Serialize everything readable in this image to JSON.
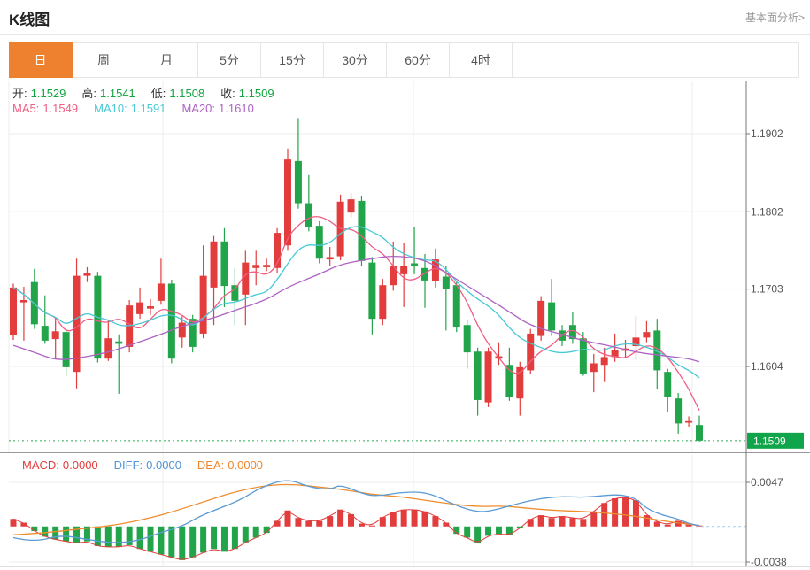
{
  "header": {
    "title": "K线图",
    "link": "基本面分析>"
  },
  "tabs": {
    "items": [
      "日",
      "周",
      "月",
      "5分",
      "15分",
      "30分",
      "60分",
      "4时"
    ],
    "active": "日"
  },
  "overlay": {
    "ohlc": [
      {
        "key": "open",
        "label": "开:",
        "value": "1.1529"
      },
      {
        "key": "high",
        "label": "高:",
        "value": "1.1541"
      },
      {
        "key": "low",
        "label": "低:",
        "value": "1.1508"
      },
      {
        "key": "close",
        "label": "收:",
        "value": "1.1509"
      }
    ],
    "ohlc_label_color": "#333333",
    "ohlc_value_color": "#12a43e",
    "ma": [
      {
        "key": "ma5",
        "label": "MA5:",
        "value": "1.1549",
        "color": "#ef5d83"
      },
      {
        "key": "ma10",
        "label": "MA10:",
        "value": "1.1591",
        "color": "#49c9d6"
      },
      {
        "key": "ma20",
        "label": "MA20:",
        "value": "1.1610",
        "color": "#ad62c2"
      }
    ],
    "macd": [
      {
        "key": "macd",
        "label": "MACD:",
        "value": "0.0000",
        "color": "#e23c3c"
      },
      {
        "key": "diff",
        "label": "DIFF:",
        "value": "0.0000",
        "color": "#4f94d8"
      },
      {
        "key": "dea",
        "label": "DEA:",
        "value": "0.0000",
        "color": "#f0862c"
      }
    ]
  },
  "chart_data": {
    "type": "candlestick+macd",
    "colors": {
      "up": "#e23c3c",
      "down": "#22a54a",
      "ma5": "#ef5d83",
      "ma10": "#49c9d6",
      "ma20": "#ad62c2",
      "diff": "#5b9bd5",
      "dea": "#ef8c2d",
      "macd_line": "#e23c3c",
      "price_badge": "#10a54a",
      "price_dotted": "#2cab57",
      "grid": "#ececec",
      "axis": "#777777",
      "tick_text": "#555555"
    },
    "main": {
      "y_ticks": [
        1.1902,
        1.1802,
        1.1703,
        1.1604
      ],
      "current_price": 1.1509,
      "current_price_label": "1.1509",
      "candles_format": "[open, high, low, close]",
      "candles": [
        [
          1.1644,
          1.171,
          1.1638,
          1.1705
        ],
        [
          1.1686,
          1.1706,
          1.1637,
          1.1689
        ],
        [
          1.1712,
          1.1729,
          1.1652,
          1.1658
        ],
        [
          1.1656,
          1.1695,
          1.1633,
          1.1637
        ],
        [
          1.1639,
          1.1666,
          1.1614,
          1.1649
        ],
        [
          1.1648,
          1.1652,
          1.1592,
          1.1603
        ],
        [
          1.1597,
          1.1742,
          1.1576,
          1.172
        ],
        [
          1.172,
          1.1731,
          1.1712,
          1.1723
        ],
        [
          1.172,
          1.1725,
          1.1609,
          1.1614
        ],
        [
          1.1614,
          1.1663,
          1.1611,
          1.164
        ],
        [
          1.1636,
          1.1645,
          1.1569,
          1.1633
        ],
        [
          1.1629,
          1.1689,
          1.1622,
          1.1682
        ],
        [
          1.1671,
          1.1705,
          1.1665,
          1.1686
        ],
        [
          1.1678,
          1.169,
          1.167,
          1.1681
        ],
        [
          1.1688,
          1.1742,
          1.1683,
          1.171
        ],
        [
          1.171,
          1.1715,
          1.1608,
          1.1614
        ],
        [
          1.1641,
          1.1668,
          1.1628,
          1.166
        ],
        [
          1.1665,
          1.167,
          1.1622,
          1.1629
        ],
        [
          1.1646,
          1.1759,
          1.164,
          1.172
        ],
        [
          1.1705,
          1.1771,
          1.1657,
          1.1764
        ],
        [
          1.1764,
          1.1781,
          1.168,
          1.1707
        ],
        [
          1.1708,
          1.173,
          1.1657,
          1.1688
        ],
        [
          1.1696,
          1.1752,
          1.1657,
          1.1737
        ],
        [
          1.173,
          1.1752,
          1.1708,
          1.1734
        ],
        [
          1.1731,
          1.1742,
          1.1726,
          1.1734
        ],
        [
          1.173,
          1.1781,
          1.1723,
          1.1775
        ],
        [
          1.1759,
          1.1883,
          1.1752,
          1.1869
        ],
        [
          1.1867,
          1.1922,
          1.1806,
          1.1813
        ],
        [
          1.1813,
          1.1849,
          1.1777,
          1.1783
        ],
        [
          1.1784,
          1.179,
          1.1736,
          1.1742
        ],
        [
          1.1741,
          1.1757,
          1.1733,
          1.1744
        ],
        [
          1.1745,
          1.1824,
          1.174,
          1.1815
        ],
        [
          1.1801,
          1.1826,
          1.1795,
          1.1818
        ],
        [
          1.1816,
          1.1822,
          1.1732,
          1.1739
        ],
        [
          1.1737,
          1.1744,
          1.1645,
          1.1665
        ],
        [
          1.1665,
          1.1716,
          1.1657,
          1.1708
        ],
        [
          1.1708,
          1.1764,
          1.1701,
          1.1733
        ],
        [
          1.1722,
          1.1762,
          1.168,
          1.1733
        ],
        [
          1.1736,
          1.1782,
          1.1722,
          1.1732
        ],
        [
          1.173,
          1.1748,
          1.1679,
          1.1714
        ],
        [
          1.1713,
          1.1755,
          1.1705,
          1.1741
        ],
        [
          1.1719,
          1.1733,
          1.165,
          1.1703
        ],
        [
          1.1708,
          1.1712,
          1.1648,
          1.1654
        ],
        [
          1.1657,
          1.1663,
          1.1601,
          1.1622
        ],
        [
          1.1623,
          1.1628,
          1.1541,
          1.1561
        ],
        [
          1.1558,
          1.1628,
          1.1552,
          1.1623
        ],
        [
          1.1614,
          1.1635,
          1.1606,
          1.1617
        ],
        [
          1.1606,
          1.1628,
          1.156,
          1.1565
        ],
        [
          1.1563,
          1.161,
          1.1541,
          1.1603
        ],
        [
          1.1599,
          1.1652,
          1.1594,
          1.1646
        ],
        [
          1.1643,
          1.1694,
          1.1637,
          1.1688
        ],
        [
          1.1686,
          1.1716,
          1.1643,
          1.165
        ],
        [
          1.165,
          1.1657,
          1.163,
          1.1637
        ],
        [
          1.1657,
          1.1674,
          1.1633,
          1.1639
        ],
        [
          1.164,
          1.1648,
          1.1592,
          1.1595
        ],
        [
          1.1597,
          1.162,
          1.1571,
          1.1608
        ],
        [
          1.1606,
          1.1628,
          1.1584,
          1.1616
        ],
        [
          1.1616,
          1.1646,
          1.161,
          1.1625
        ],
        [
          1.1624,
          1.1638,
          1.1616,
          1.1627
        ],
        [
          1.163,
          1.1669,
          1.1612,
          1.1641
        ],
        [
          1.1641,
          1.1662,
          1.1635,
          1.1648
        ],
        [
          1.165,
          1.1665,
          1.1575,
          1.1599
        ],
        [
          1.1597,
          1.1601,
          1.1546,
          1.1565
        ],
        [
          1.1563,
          1.157,
          1.1518,
          1.1531
        ],
        [
          1.1532,
          1.154,
          1.1527,
          1.1534
        ],
        [
          1.1529,
          1.1541,
          1.1508,
          1.1509
        ]
      ],
      "ma20_line": [
        [
          0,
          1.1631
        ],
        [
          2,
          1.1622
        ],
        [
          4,
          1.1612
        ],
        [
          6,
          1.1614
        ],
        [
          9,
          1.1622
        ],
        [
          11,
          1.1631
        ],
        [
          14,
          1.1645
        ],
        [
          16,
          1.1656
        ],
        [
          19,
          1.1666
        ],
        [
          21,
          1.1676
        ],
        [
          24,
          1.1689
        ],
        [
          26,
          1.1706
        ],
        [
          29,
          1.1722
        ],
        [
          31,
          1.1735
        ],
        [
          34,
          1.1742
        ],
        [
          36,
          1.1746
        ],
        [
          39,
          1.1741
        ],
        [
          41,
          1.1724
        ],
        [
          44,
          1.1699
        ],
        [
          47,
          1.1674
        ],
        [
          49,
          1.1656
        ],
        [
          52,
          1.1645
        ],
        [
          54,
          1.1637
        ],
        [
          57,
          1.1629
        ],
        [
          59,
          1.1622
        ],
        [
          62,
          1.1617
        ],
        [
          64,
          1.1614
        ],
        [
          65,
          1.161
        ]
      ]
    },
    "macd": {
      "y_ticks": [
        0.0047,
        -0.0038
      ],
      "histogram": [
        0.0008,
        0.0004,
        -0.0005,
        -0.0011,
        -0.0014,
        -0.0016,
        -0.0018,
        -0.0016,
        -0.0021,
        -0.0022,
        -0.0022,
        -0.002,
        -0.0024,
        -0.0027,
        -0.003,
        -0.0033,
        -0.0036,
        -0.0033,
        -0.0028,
        -0.0024,
        -0.0027,
        -0.0024,
        -0.0017,
        -0.0012,
        -0.0007,
        0.0006,
        0.0017,
        0.0009,
        0.0006,
        0.0006,
        0.0011,
        0.0018,
        0.0013,
        0.0003,
        0.0001,
        0.001,
        0.0015,
        0.0018,
        0.0018,
        0.0016,
        0.0011,
        0.0004,
        -0.0008,
        -0.0012,
        -0.0018,
        -0.001,
        -0.0008,
        -0.0009,
        -0.0002,
        0.0008,
        0.0012,
        0.0009,
        0.0011,
        0.0009,
        0.0008,
        0.0016,
        0.0025,
        0.003,
        0.0031,
        0.0028,
        0.0012,
        0.0005,
        0.0002,
        0.0006,
        0.0002,
        0.0001
      ],
      "diff_line": [
        [
          0,
          -0.0012
        ],
        [
          2,
          -0.0017
        ],
        [
          4.5,
          -0.0009
        ],
        [
          7,
          -0.0014
        ],
        [
          9.5,
          -0.0018
        ],
        [
          12,
          -0.0015
        ],
        [
          14,
          -0.0006
        ],
        [
          16,
          0
        ],
        [
          17.5,
          0.001
        ],
        [
          19,
          0.0017
        ],
        [
          21.5,
          0.0028
        ],
        [
          23.5,
          0.0042
        ],
        [
          26,
          0.0051
        ],
        [
          28,
          0.0042
        ],
        [
          30,
          0.0039
        ],
        [
          31,
          0.0045
        ],
        [
          33.5,
          0.0033
        ],
        [
          35,
          0.0033
        ],
        [
          36.5,
          0.0036
        ],
        [
          38.5,
          0.0037
        ],
        [
          40,
          0.0033
        ],
        [
          42,
          0.0022
        ],
        [
          44,
          0.0015
        ],
        [
          45.5,
          0.0017
        ],
        [
          48,
          0.0025
        ],
        [
          50,
          0.003
        ],
        [
          52,
          0.0032
        ],
        [
          54,
          0.0031
        ],
        [
          56,
          0.0033
        ],
        [
          57.5,
          0.0034
        ],
        [
          59,
          0.003
        ],
        [
          60,
          0.0019
        ],
        [
          61.5,
          0.0012
        ],
        [
          63,
          0.0008
        ],
        [
          64,
          0.0003
        ],
        [
          65,
          0.0001
        ]
      ],
      "dea_line": [
        [
          0,
          -0.0009
        ],
        [
          3,
          -0.0007
        ],
        [
          6,
          -0.0003
        ],
        [
          9.5,
          0.0001
        ],
        [
          13,
          0.0009
        ],
        [
          15.5,
          0.0017
        ],
        [
          18.5,
          0.0028
        ],
        [
          21,
          0.0037
        ],
        [
          24,
          0.0044
        ],
        [
          26.5,
          0.0045
        ],
        [
          29,
          0.0042
        ],
        [
          31.5,
          0.0039
        ],
        [
          34,
          0.0034
        ],
        [
          36.5,
          0.0032
        ],
        [
          39,
          0.0028
        ],
        [
          41.5,
          0.0024
        ],
        [
          44,
          0.0021
        ],
        [
          46.5,
          0.0022
        ],
        [
          49,
          0.0019
        ],
        [
          51.5,
          0.0017
        ],
        [
          54,
          0.0016
        ],
        [
          56.5,
          0.0014
        ],
        [
          59,
          0.0011
        ],
        [
          61.5,
          0.0006
        ],
        [
          63.5,
          0.0003
        ],
        [
          65,
          0.0001
        ]
      ]
    }
  }
}
